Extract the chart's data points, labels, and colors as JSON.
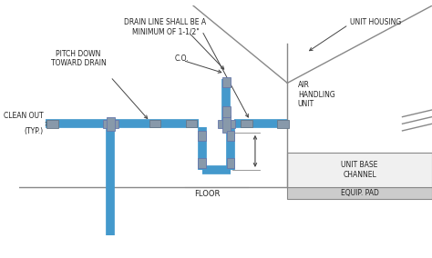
{
  "bg_color": "#ffffff",
  "pipe_color": "#4499cc",
  "fitting_color": "#8899aa",
  "line_color": "#444444",
  "text_color": "#222222",
  "labels": {
    "drain_line": "DRAIN LINE SHALL BE A\nMINIMUM OF 1-1/2\"",
    "co": "C.O.",
    "pitch_down": "PITCH DOWN\nTOWARD DRAIN",
    "clean_out": "CLEAN OUT",
    "clean_out2": "(TYP.)",
    "floor": "FLOOR",
    "unit_housing": "UNIT HOUSING",
    "air_handling": "AIR\nHANDLING\nUNIT",
    "unit_base": "UNIT BASE\nCHANNEL",
    "equip_pad": "EQUIP. PAD"
  }
}
